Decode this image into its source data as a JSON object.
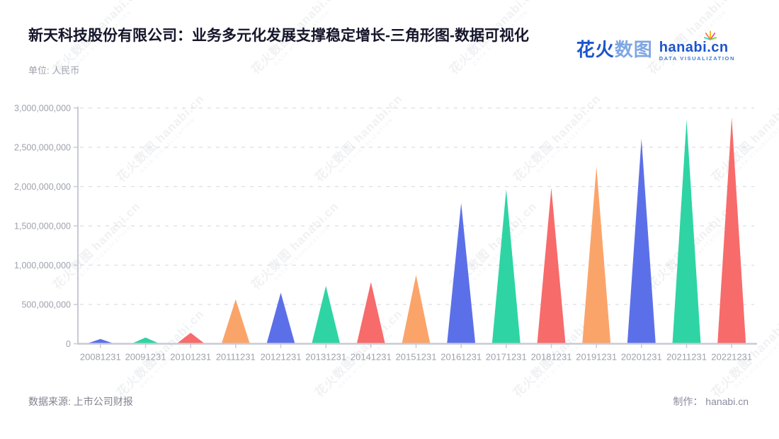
{
  "header": {
    "title": "新天科技股份有限公司：业务多元化发展支撑稳定增长-三角形图-数据可视化",
    "subtitle": "单位: 人民币"
  },
  "logo": {
    "brand_cn_primary": "花火",
    "brand_cn_secondary": "数图",
    "brand_en": "hanabi.cn",
    "brand_tagline": "DATA VISUALIZATION",
    "brand_color": "#1d55cc"
  },
  "watermark": {
    "main": "花火数图 hanabi.cn",
    "tagline": "DATA VISUALIZATION"
  },
  "footer": {
    "source": "数据来源: 上市公司财报",
    "credit": "制作： hanabi.cn"
  },
  "chart_data": {
    "type": "bar",
    "shape": "triangle",
    "title": "新天科技股份有限公司：业务多元化发展支撑稳定增长-三角形图-数据可视化",
    "unit": "人民币",
    "categories": [
      "20081231",
      "20091231",
      "20101231",
      "20111231",
      "20121231",
      "20131231",
      "20141231",
      "20151231",
      "20161231",
      "20171231",
      "20181231",
      "20191231",
      "20201231",
      "20211231",
      "20221231"
    ],
    "values": [
      60000000,
      80000000,
      140000000,
      565000000,
      650000000,
      735000000,
      785000000,
      875000000,
      1790000000,
      1965000000,
      1985000000,
      2255000000,
      2610000000,
      2850000000,
      2880000000
    ],
    "palette": [
      "#5b70e8",
      "#2fd4a4",
      "#f76b6b",
      "#fba46a"
    ],
    "ylim": [
      0,
      3000000000
    ],
    "ytick_interval": 500000000,
    "ytick_labels": [
      "0",
      "500,000,000",
      "1,000,000,000",
      "1,500,000,000",
      "2,000,000,000",
      "2,500,000,000",
      "3,000,000,000"
    ],
    "grid": "horizontal-dashed",
    "legend": "none",
    "axis_color": "#c8cad3",
    "grid_color": "#dedee4",
    "label_color": "#9fa2ae"
  }
}
